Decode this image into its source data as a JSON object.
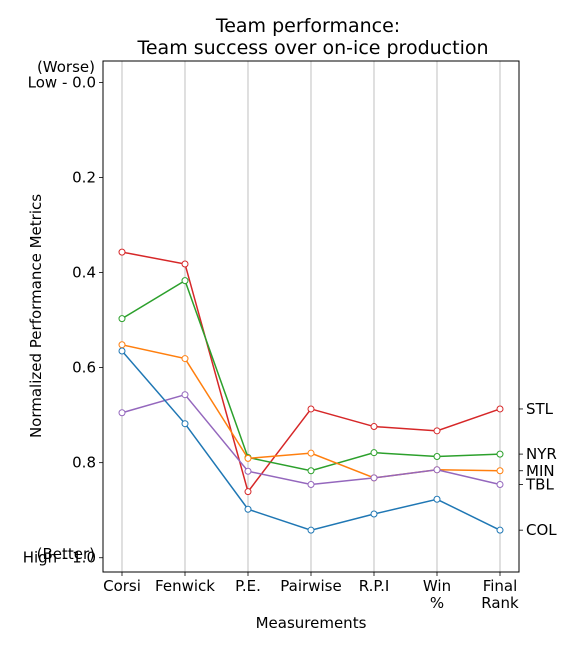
{
  "chart_data": {
    "type": "line",
    "title_line1": "Team performance:",
    "title_line2": "Team success over on-ice production",
    "xlabel": "Measurements",
    "ylabel": "Normalized Performance Metrics",
    "categories": [
      "Corsi",
      "Fenwick",
      "P.E.",
      "Pairwise",
      "R.P.I",
      "Win %",
      "Final Rank"
    ],
    "y_tick_values": [
      0.0,
      0.2,
      0.4,
      0.6,
      0.8,
      1.0
    ],
    "y_tick_labels": [
      "Low - 0.0",
      "0.2",
      "0.4",
      "0.6",
      "0.8",
      "High - 1.0"
    ],
    "y_top_note": "(Worse)",
    "y_bottom_note": "(Better)",
    "ylim": [
      1.03,
      -0.045
    ],
    "grid": "vertical",
    "series": [
      {
        "name": "STL",
        "color": "#d62728",
        "values": [
          0.357,
          0.382,
          0.861,
          0.687,
          0.724,
          0.733,
          0.687
        ]
      },
      {
        "name": "NYR",
        "color": "#2ca02c",
        "values": [
          0.497,
          0.417,
          0.789,
          0.817,
          0.779,
          0.787,
          0.782
        ]
      },
      {
        "name": "MIN",
        "color": "#ff7f0e",
        "values": [
          0.552,
          0.581,
          0.791,
          0.78,
          0.832,
          0.815,
          0.817
        ]
      },
      {
        "name": "TBL",
        "color": "#9467bd",
        "values": [
          0.695,
          0.657,
          0.818,
          0.846,
          0.832,
          0.815,
          0.846
        ]
      },
      {
        "name": "COL",
        "color": "#1f77b4",
        "values": [
          0.565,
          0.718,
          0.898,
          0.942,
          0.908,
          0.877,
          0.942
        ]
      }
    ]
  }
}
